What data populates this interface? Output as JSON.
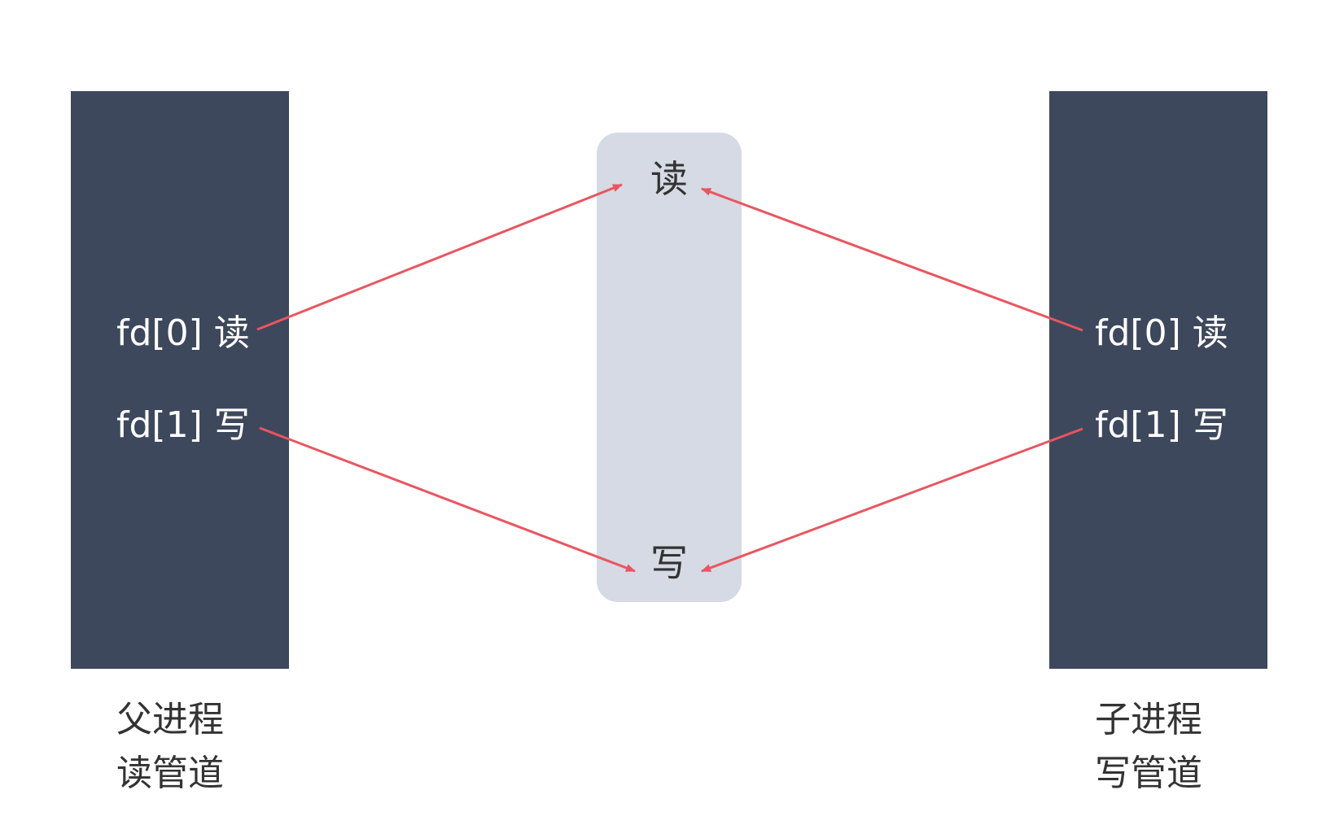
{
  "parent": {
    "fd0": "fd[0] 读",
    "fd1": "fd[1] 写",
    "caption_line1": "父进程",
    "caption_line2": "读管道"
  },
  "child": {
    "fd0": "fd[0] 读",
    "fd1": "fd[1] 写",
    "caption_line1": "子进程",
    "caption_line2": "写管道"
  },
  "pipe": {
    "read_end": "读",
    "write_end": "写"
  },
  "colors": {
    "process_box": "#3e485c",
    "pipe_box": "#d6dae5",
    "arrow": "#ea5560"
  }
}
